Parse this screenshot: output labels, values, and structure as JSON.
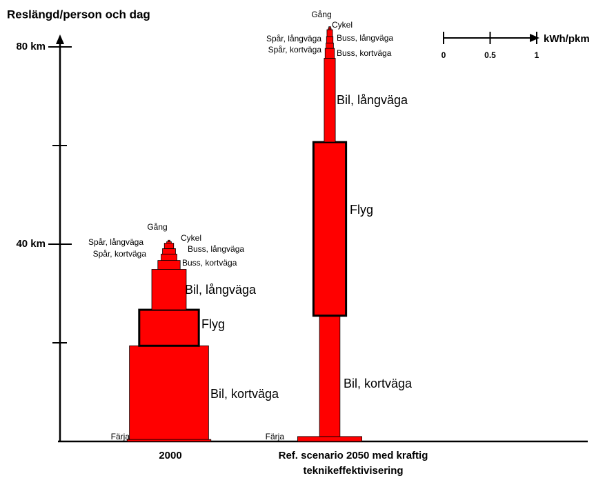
{
  "chart_data": {
    "type": "pyramid",
    "y_title": "Reslängd/person och dag",
    "ylim": [
      0,
      80
    ],
    "yticks": [
      {
        "value": 20,
        "label": null
      },
      {
        "value": 40,
        "label": "40 km"
      },
      {
        "value": 60,
        "label": null
      },
      {
        "value": 80,
        "label": "80 km"
      }
    ],
    "xlim": [
      0,
      1
    ],
    "xticks": [
      0,
      0.5,
      1
    ],
    "x_unit": "kWh/pkm",
    "color": "#ff0000",
    "stacks": [
      {
        "label": [
          "2000"
        ],
        "segments": [
          {
            "name": "Färja",
            "km": 0.4,
            "kwh": 0.9
          },
          {
            "name": "Bil, kortväga",
            "km": 19,
            "kwh": 0.85
          },
          {
            "name": "Flyg",
            "km": 7.3,
            "kwh": 0.64
          },
          {
            "name": "Bil, långväga",
            "km": 8.2,
            "kwh": 0.37
          },
          {
            "name": "Buss, kortväga",
            "km": 1.8,
            "kwh": 0.24
          },
          {
            "name": "Spår, kortväga",
            "km": 1.3,
            "kwh": 0.17
          },
          {
            "name": "Buss, långväga",
            "km": 1.1,
            "kwh": 0.14
          },
          {
            "name": "Spår, långväga",
            "km": 1.1,
            "kwh": 0.1
          },
          {
            "name": "Cykel",
            "km": 0.3,
            "kwh": 0.05
          },
          {
            "name": "Gång",
            "km": 0.3,
            "kwh": 0.02
          }
        ]
      },
      {
        "label": [
          "Ref. scenario 2050 med kraftig",
          "teknikeffektivisering"
        ],
        "segments": [
          {
            "name": "Färja",
            "km": 1,
            "kwh": 0.69
          },
          {
            "name": "Bil, kortväga",
            "km": 24.5,
            "kwh": 0.22
          },
          {
            "name": "Flyg",
            "km": 35.2,
            "kwh": 0.35
          },
          {
            "name": "Bil, långväga",
            "km": 17,
            "kwh": 0.12
          },
          {
            "name": "Buss, kortväga",
            "km": 2,
            "kwh": 0.1
          },
          {
            "name": "Spår, kortväga",
            "km": 1.1,
            "kwh": 0.08
          },
          {
            "name": "Buss, långväga",
            "km": 1.3,
            "kwh": 0.07
          },
          {
            "name": "Spår, långväga",
            "km": 1.4,
            "kwh": 0.06
          },
          {
            "name": "Cykel",
            "km": 0.3,
            "kwh": 0.03
          },
          {
            "name": "Gång",
            "km": 0.3,
            "kwh": 0.02
          }
        ]
      }
    ]
  }
}
